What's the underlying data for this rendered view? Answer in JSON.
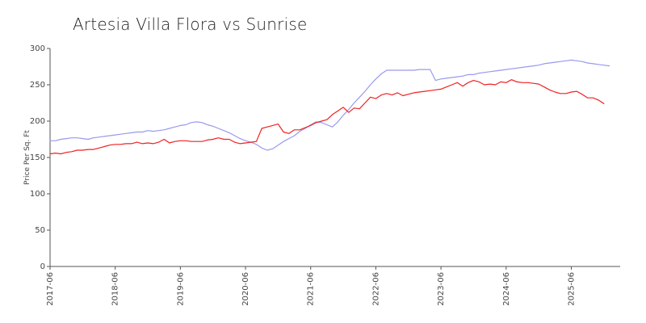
{
  "chart_data": {
    "type": "line",
    "title": "Artesia Villa Flora vs Sunrise",
    "xlabel": "",
    "ylabel": "Price Per Sq. Ft",
    "ylim": [
      0,
      300
    ],
    "yticks": [
      0,
      50,
      100,
      150,
      200,
      250,
      300
    ],
    "x_start": "2017-06",
    "x_end": "2026-03",
    "xticks": [
      "2017-06",
      "2018-06",
      "2019-06",
      "2020-06",
      "2021-06",
      "2022-06",
      "2023-06",
      "2024-06",
      "2025-06"
    ],
    "grid": false,
    "legend": "none",
    "series": [
      {
        "color": "#9999ee",
        "points": [
          [
            "2017-06",
            173
          ],
          [
            "2017-07",
            173
          ],
          [
            "2017-08",
            175
          ],
          [
            "2017-09",
            176
          ],
          [
            "2017-10",
            177
          ],
          [
            "2017-11",
            177
          ],
          [
            "2017-12",
            176
          ],
          [
            "2018-01",
            175
          ],
          [
            "2018-02",
            177
          ],
          [
            "2018-03",
            178
          ],
          [
            "2018-04",
            179
          ],
          [
            "2018-05",
            180
          ],
          [
            "2018-06",
            181
          ],
          [
            "2018-07",
            182
          ],
          [
            "2018-08",
            183
          ],
          [
            "2018-09",
            184
          ],
          [
            "2018-10",
            185
          ],
          [
            "2018-11",
            185
          ],
          [
            "2018-12",
            187
          ],
          [
            "2019-01",
            186
          ],
          [
            "2019-02",
            187
          ],
          [
            "2019-03",
            188
          ],
          [
            "2019-04",
            190
          ],
          [
            "2019-05",
            192
          ],
          [
            "2019-06",
            194
          ],
          [
            "2019-07",
            195
          ],
          [
            "2019-08",
            198
          ],
          [
            "2019-09",
            199
          ],
          [
            "2019-10",
            198
          ],
          [
            "2019-11",
            195
          ],
          [
            "2019-12",
            193
          ],
          [
            "2020-01",
            190
          ],
          [
            "2020-02",
            187
          ],
          [
            "2020-03",
            184
          ],
          [
            "2020-04",
            180
          ],
          [
            "2020-05",
            176
          ],
          [
            "2020-06",
            173
          ],
          [
            "2020-07",
            171
          ],
          [
            "2020-08",
            168
          ],
          [
            "2020-09",
            163
          ],
          [
            "2020-10",
            160
          ],
          [
            "2020-11",
            162
          ],
          [
            "2020-12",
            167
          ],
          [
            "2021-01",
            172
          ],
          [
            "2021-02",
            176
          ],
          [
            "2021-03",
            180
          ],
          [
            "2021-04",
            186
          ],
          [
            "2021-05",
            190
          ],
          [
            "2021-06",
            195
          ],
          [
            "2021-07",
            199
          ],
          [
            "2021-08",
            198
          ],
          [
            "2021-09",
            195
          ],
          [
            "2021-10",
            192
          ],
          [
            "2021-11",
            199
          ],
          [
            "2021-12",
            208
          ],
          [
            "2022-01",
            216
          ],
          [
            "2022-02",
            225
          ],
          [
            "2022-03",
            233
          ],
          [
            "2022-04",
            241
          ],
          [
            "2022-05",
            250
          ],
          [
            "2022-06",
            258
          ],
          [
            "2022-07",
            265
          ],
          [
            "2022-08",
            270
          ],
          [
            "2022-09",
            270
          ],
          [
            "2022-10",
            270
          ],
          [
            "2022-11",
            270
          ],
          [
            "2022-12",
            270
          ],
          [
            "2023-01",
            270
          ],
          [
            "2023-02",
            271
          ],
          [
            "2023-03",
            271
          ],
          [
            "2023-04",
            271
          ],
          [
            "2023-05",
            256
          ],
          [
            "2023-06",
            258
          ],
          [
            "2023-07",
            259
          ],
          [
            "2023-08",
            260
          ],
          [
            "2023-09",
            261
          ],
          [
            "2023-10",
            262
          ],
          [
            "2023-11",
            264
          ],
          [
            "2023-12",
            264
          ],
          [
            "2024-01",
            266
          ],
          [
            "2024-02",
            267
          ],
          [
            "2024-03",
            268
          ],
          [
            "2024-04",
            269
          ],
          [
            "2024-05",
            270
          ],
          [
            "2024-06",
            271
          ],
          [
            "2024-07",
            272
          ],
          [
            "2024-08",
            273
          ],
          [
            "2024-09",
            274
          ],
          [
            "2024-10",
            275
          ],
          [
            "2024-11",
            276
          ],
          [
            "2024-12",
            277
          ],
          [
            "2025-01",
            279
          ],
          [
            "2025-02",
            280
          ],
          [
            "2025-03",
            281
          ],
          [
            "2025-04",
            282
          ],
          [
            "2025-05",
            283
          ],
          [
            "2025-06",
            284
          ],
          [
            "2025-07",
            283
          ],
          [
            "2025-08",
            282
          ],
          [
            "2025-09",
            280
          ],
          [
            "2025-10",
            279
          ],
          [
            "2025-11",
            278
          ],
          [
            "2025-12",
            277
          ],
          [
            "2026-01",
            276
          ]
        ]
      },
      {
        "color": "#ee2222",
        "points": [
          [
            "2017-06",
            155
          ],
          [
            "2017-07",
            156
          ],
          [
            "2017-08",
            155
          ],
          [
            "2017-09",
            157
          ],
          [
            "2017-10",
            158
          ],
          [
            "2017-11",
            160
          ],
          [
            "2017-12",
            160
          ],
          [
            "2018-01",
            161
          ],
          [
            "2018-02",
            161
          ],
          [
            "2018-03",
            163
          ],
          [
            "2018-04",
            165
          ],
          [
            "2018-05",
            167
          ],
          [
            "2018-06",
            168
          ],
          [
            "2018-07",
            168
          ],
          [
            "2018-08",
            169
          ],
          [
            "2018-09",
            169
          ],
          [
            "2018-10",
            171
          ],
          [
            "2018-11",
            169
          ],
          [
            "2018-12",
            170
          ],
          [
            "2019-01",
            169
          ],
          [
            "2019-02",
            171
          ],
          [
            "2019-03",
            175
          ],
          [
            "2019-04",
            170
          ],
          [
            "2019-05",
            172
          ],
          [
            "2019-06",
            173
          ],
          [
            "2019-07",
            173
          ],
          [
            "2019-08",
            172
          ],
          [
            "2019-09",
            172
          ],
          [
            "2019-10",
            172
          ],
          [
            "2019-11",
            174
          ],
          [
            "2019-12",
            175
          ],
          [
            "2020-01",
            177
          ],
          [
            "2020-02",
            175
          ],
          [
            "2020-03",
            175
          ],
          [
            "2020-04",
            171
          ],
          [
            "2020-05",
            169
          ],
          [
            "2020-06",
            170
          ],
          [
            "2020-07",
            171
          ],
          [
            "2020-08",
            172
          ],
          [
            "2020-09",
            190
          ],
          [
            "2020-10",
            192
          ],
          [
            "2020-11",
            194
          ],
          [
            "2020-12",
            196
          ],
          [
            "2021-01",
            185
          ],
          [
            "2021-02",
            183
          ],
          [
            "2021-03",
            188
          ],
          [
            "2021-04",
            188
          ],
          [
            "2021-05",
            191
          ],
          [
            "2021-06",
            194
          ],
          [
            "2021-07",
            198
          ],
          [
            "2021-08",
            200
          ],
          [
            "2021-09",
            202
          ],
          [
            "2021-10",
            209
          ],
          [
            "2021-11",
            214
          ],
          [
            "2021-12",
            219
          ],
          [
            "2022-01",
            212
          ],
          [
            "2022-02",
            218
          ],
          [
            "2022-03",
            217
          ],
          [
            "2022-04",
            225
          ],
          [
            "2022-05",
            233
          ],
          [
            "2022-06",
            231
          ],
          [
            "2022-07",
            236
          ],
          [
            "2022-08",
            238
          ],
          [
            "2022-09",
            236
          ],
          [
            "2022-10",
            239
          ],
          [
            "2022-11",
            235
          ],
          [
            "2022-12",
            237
          ],
          [
            "2023-01",
            239
          ],
          [
            "2023-02",
            240
          ],
          [
            "2023-03",
            241
          ],
          [
            "2023-04",
            242
          ],
          [
            "2023-05",
            243
          ],
          [
            "2023-06",
            244
          ],
          [
            "2023-07",
            247
          ],
          [
            "2023-08",
            250
          ],
          [
            "2023-09",
            253
          ],
          [
            "2023-10",
            248
          ],
          [
            "2023-11",
            253
          ],
          [
            "2023-12",
            256
          ],
          [
            "2024-01",
            254
          ],
          [
            "2024-02",
            250
          ],
          [
            "2024-03",
            251
          ],
          [
            "2024-04",
            250
          ],
          [
            "2024-05",
            254
          ],
          [
            "2024-06",
            253
          ],
          [
            "2024-07",
            257
          ],
          [
            "2024-08",
            254
          ],
          [
            "2024-09",
            253
          ],
          [
            "2024-10",
            253
          ],
          [
            "2024-11",
            252
          ],
          [
            "2024-12",
            251
          ],
          [
            "2025-01",
            247
          ],
          [
            "2025-02",
            243
          ],
          [
            "2025-03",
            240
          ],
          [
            "2025-04",
            238
          ],
          [
            "2025-05",
            238
          ],
          [
            "2025-06",
            240
          ],
          [
            "2025-07",
            241
          ],
          [
            "2025-08",
            237
          ],
          [
            "2025-09",
            232
          ],
          [
            "2025-10",
            232
          ],
          [
            "2025-11",
            229
          ],
          [
            "2025-12",
            224
          ]
        ]
      }
    ]
  }
}
